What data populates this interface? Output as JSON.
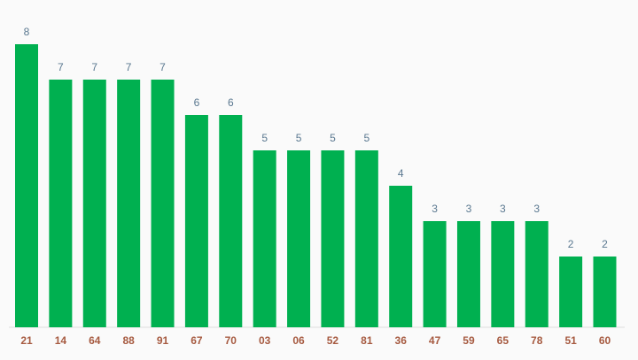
{
  "chart_data": {
    "type": "bar",
    "categories": [
      "21",
      "14",
      "64",
      "88",
      "91",
      "67",
      "70",
      "03",
      "06",
      "52",
      "81",
      "36",
      "47",
      "59",
      "65",
      "78",
      "51",
      "60"
    ],
    "values": [
      8,
      7,
      7,
      7,
      7,
      6,
      6,
      5,
      5,
      5,
      5,
      4,
      3,
      3,
      3,
      3,
      2,
      2
    ],
    "color": "#00b050"
  }
}
